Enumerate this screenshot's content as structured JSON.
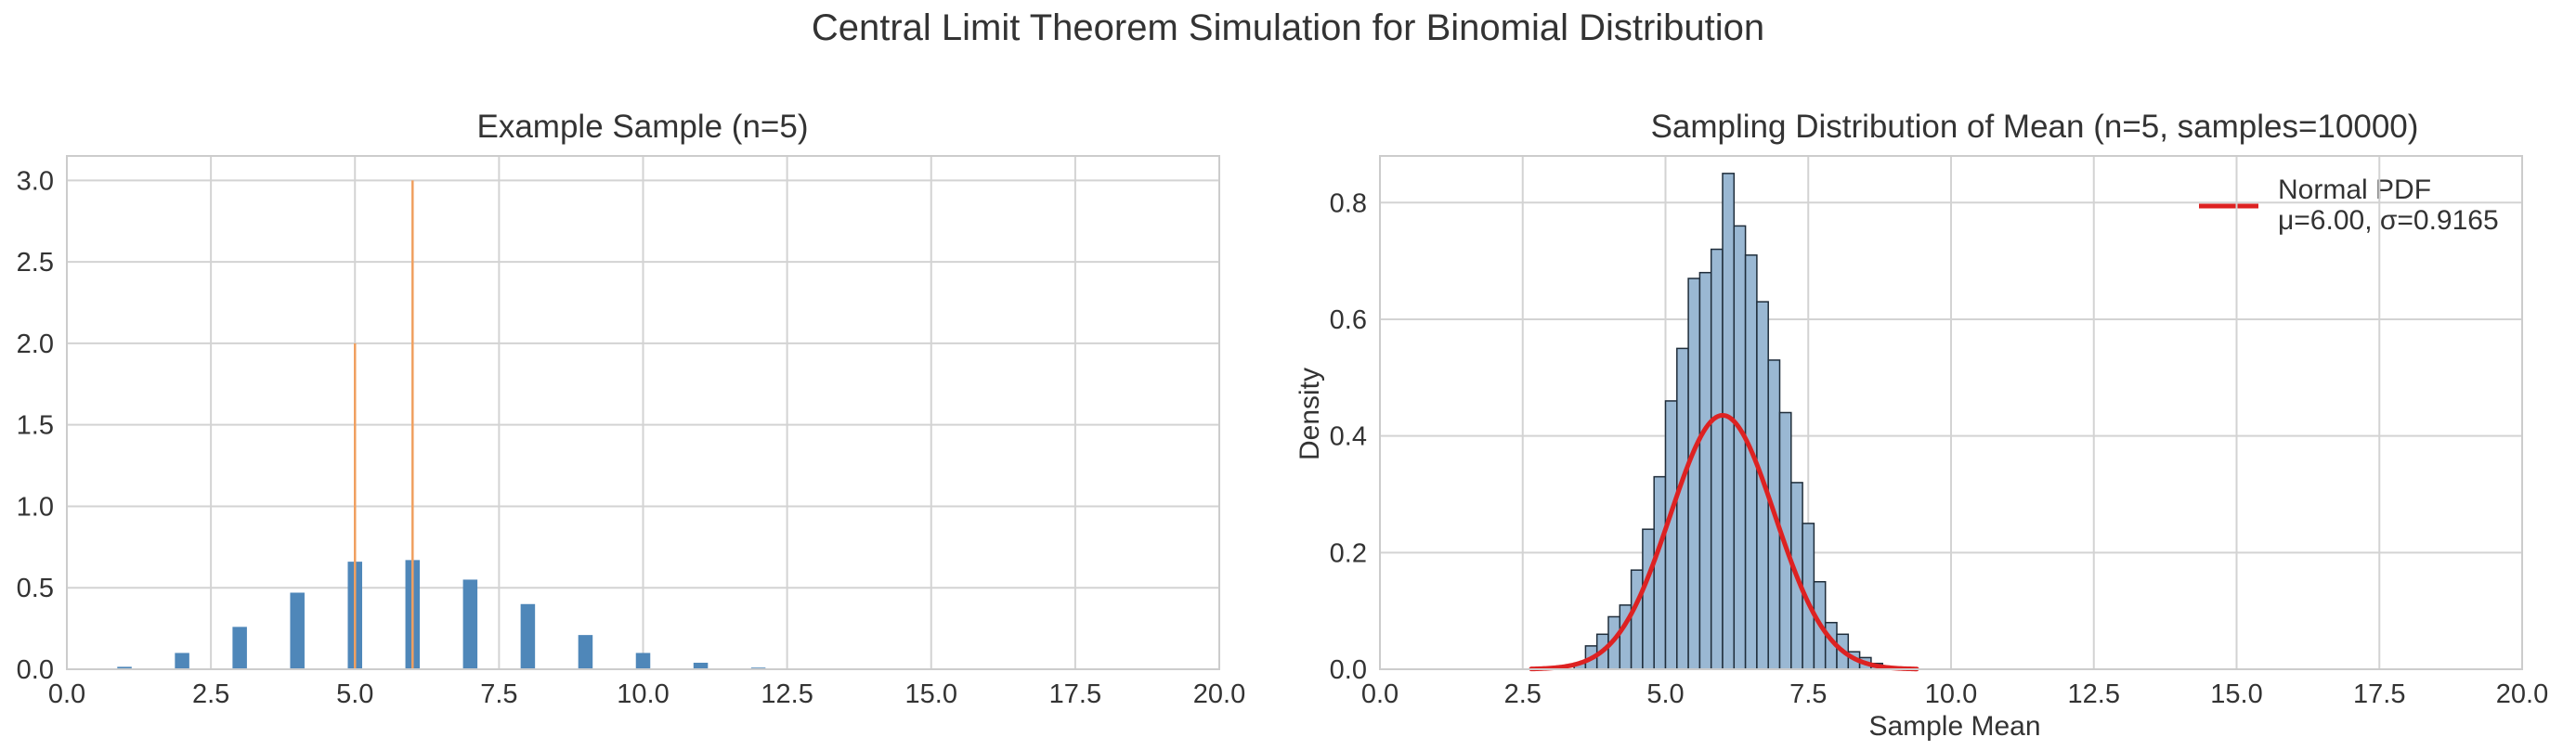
{
  "figure": {
    "title": "Central Limit Theorem Simulation for Binomial Distribution"
  },
  "colors": {
    "bar_blue": "#4f87b9",
    "hist_blue": "#9ab8d3",
    "hist_edge": "#1f2d3a",
    "orange_line": "#f0a060",
    "pdf_red": "#dd2222",
    "grid": "#d3d3d3",
    "text": "#333333"
  },
  "chart_data": [
    {
      "type": "bar",
      "title": "Example Sample (n=5)",
      "xlabel": "",
      "ylabel": "",
      "xlim": [
        0,
        20
      ],
      "ylim": [
        0,
        3.15
      ],
      "xticks": [
        0,
        2.5,
        5,
        7.5,
        10,
        12.5,
        15,
        17.5,
        20
      ],
      "xtick_labels": [
        "0.0",
        "2.5",
        "5.0",
        "7.5",
        "10.0",
        "12.5",
        "15.0",
        "17.5",
        "20.0"
      ],
      "yticks": [
        0,
        0.5,
        1,
        1.5,
        2,
        2.5,
        3
      ],
      "ytick_labels": [
        "0.0",
        "0.5",
        "1.0",
        "1.5",
        "2.0",
        "2.5",
        "3.0"
      ],
      "grid": true,
      "bars": {
        "x": [
          1,
          2,
          3,
          4,
          5,
          6,
          7,
          8,
          9,
          10,
          11,
          12
        ],
        "values": [
          0.015,
          0.1,
          0.26,
          0.47,
          0.66,
          0.67,
          0.55,
          0.4,
          0.21,
          0.1,
          0.04,
          0.01
        ],
        "bar_width": 0.25,
        "color": "#4f87b9"
      },
      "vertical_lines": [
        {
          "x": 5,
          "y": 2,
          "color": "#f0a060"
        },
        {
          "x": 6,
          "y": 3,
          "color": "#f0a060"
        }
      ]
    },
    {
      "type": "histogram",
      "title": "Sampling Distribution of Mean (n=5, samples=10000)",
      "xlabel": "Sample Mean",
      "ylabel": "Density",
      "xlim": [
        0,
        20
      ],
      "ylim": [
        0,
        0.88
      ],
      "xticks": [
        0,
        2.5,
        5,
        7.5,
        10,
        12.5,
        15,
        17.5,
        20
      ],
      "xtick_labels": [
        "0.0",
        "2.5",
        "5.0",
        "7.5",
        "10.0",
        "12.5",
        "15.0",
        "17.5",
        "20.0"
      ],
      "yticks": [
        0,
        0.2,
        0.4,
        0.6,
        0.8
      ],
      "ytick_labels": [
        "0.0",
        "0.2",
        "0.4",
        "0.6",
        "0.8"
      ],
      "grid": true,
      "legend_position": "top-right",
      "histogram": {
        "bin_width": 0.2,
        "bin_starts": [
          3.4,
          3.6,
          3.8,
          4.0,
          4.2,
          4.4,
          4.6,
          4.8,
          5.0,
          5.2,
          5.4,
          5.6,
          5.8,
          6.0,
          6.2,
          6.4,
          6.6,
          6.8,
          7.0,
          7.2,
          7.4,
          7.6,
          7.8,
          8.0,
          8.2,
          8.4,
          8.6
        ],
        "densities": [
          0.01,
          0.04,
          0.06,
          0.09,
          0.11,
          0.17,
          0.24,
          0.33,
          0.46,
          0.55,
          0.67,
          0.68,
          0.72,
          0.85,
          0.76,
          0.71,
          0.63,
          0.53,
          0.44,
          0.32,
          0.25,
          0.15,
          0.08,
          0.06,
          0.03,
          0.02,
          0.01
        ],
        "color": "#9ab8d3",
        "edgecolor": "#1f2d3a"
      },
      "series": [
        {
          "name": "Normal PDF",
          "type": "line",
          "distribution": "normal",
          "mu": 6.0,
          "sigma": 0.9165,
          "x_range": [
            2.65,
            9.4
          ],
          "color": "#dd2222"
        }
      ],
      "legend": {
        "line1": "Normal PDF",
        "line2": "μ=6.00, σ=0.9165"
      }
    }
  ]
}
